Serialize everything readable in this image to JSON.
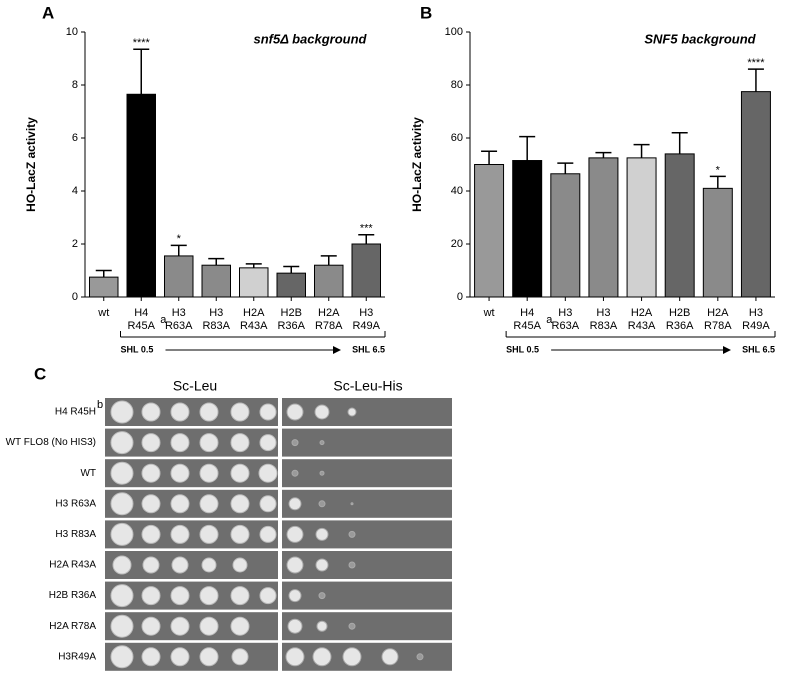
{
  "chart_data": [
    {
      "type": "bar",
      "panel": "A",
      "title": "snf5Δ background",
      "y_label": "HO-LacZ activity",
      "categories": [
        "wt",
        "H4 R45A",
        "H3 R63A",
        "H3 R83A",
        "H2A R43A",
        "H2B R36A",
        "H2A R78A",
        "H3 R49A"
      ],
      "category_notes": [
        null,
        "a",
        null,
        null,
        null,
        null,
        null,
        null
      ],
      "values": [
        0.75,
        7.65,
        1.55,
        1.2,
        1.1,
        0.9,
        1.2,
        2.0
      ],
      "errors": [
        0.25,
        1.7,
        0.4,
        0.25,
        0.15,
        0.25,
        0.35,
        0.35
      ],
      "significance": [
        null,
        "****",
        "*",
        null,
        null,
        null,
        null,
        "***"
      ],
      "colors": [
        "#999999",
        "#000000",
        "#8a8a8a",
        "#8a8a8a",
        "#d0d0d0",
        "#666666",
        "#8a8a8a",
        "#666666"
      ],
      "ylim": [
        0,
        10
      ],
      "yticks": [
        0,
        2,
        4,
        6,
        8,
        10
      ],
      "range_start": "SHL 0.5",
      "range_end": "SHL 6.5"
    },
    {
      "type": "bar",
      "panel": "B",
      "title": "SNF5 background",
      "y_label": "HO-LacZ activity",
      "categories": [
        "wt",
        "H4 R45A",
        "H3 R63A",
        "H3 R83A",
        "H2A R43A",
        "H2B R36A",
        "H2A R78A",
        "H3 R49A"
      ],
      "category_notes": [
        null,
        "a",
        null,
        null,
        null,
        null,
        null,
        null
      ],
      "values": [
        50,
        51.5,
        46.5,
        52.5,
        52.5,
        54,
        41,
        77.5
      ],
      "errors": [
        5,
        9,
        4,
        2,
        5,
        8,
        4.5,
        8.5
      ],
      "significance": [
        null,
        null,
        null,
        null,
        null,
        null,
        "*",
        "****"
      ],
      "colors": [
        "#999999",
        "#000000",
        "#8a8a8a",
        "#8a8a8a",
        "#d0d0d0",
        "#666666",
        "#8a8a8a",
        "#666666"
      ],
      "ylim": [
        0,
        100
      ],
      "yticks": [
        0,
        20,
        40,
        60,
        80,
        100
      ],
      "range_start": "SHL 0.5",
      "range_end": "SHL 6.5"
    }
  ],
  "panel_c": {
    "panel": "C",
    "columns": [
      "Sc-Leu",
      "Sc-Leu-His"
    ],
    "rows": [
      "H4 R45H",
      "WT FLO8 (No HIS3)",
      "WT",
      "H3 R63A",
      "H3 R83A",
      "H2A R43A",
      "H2B R36A",
      "H2A R78A",
      "H3R49A"
    ],
    "row_notes": [
      "b",
      null,
      null,
      null,
      null,
      null,
      null,
      null,
      null
    ]
  }
}
